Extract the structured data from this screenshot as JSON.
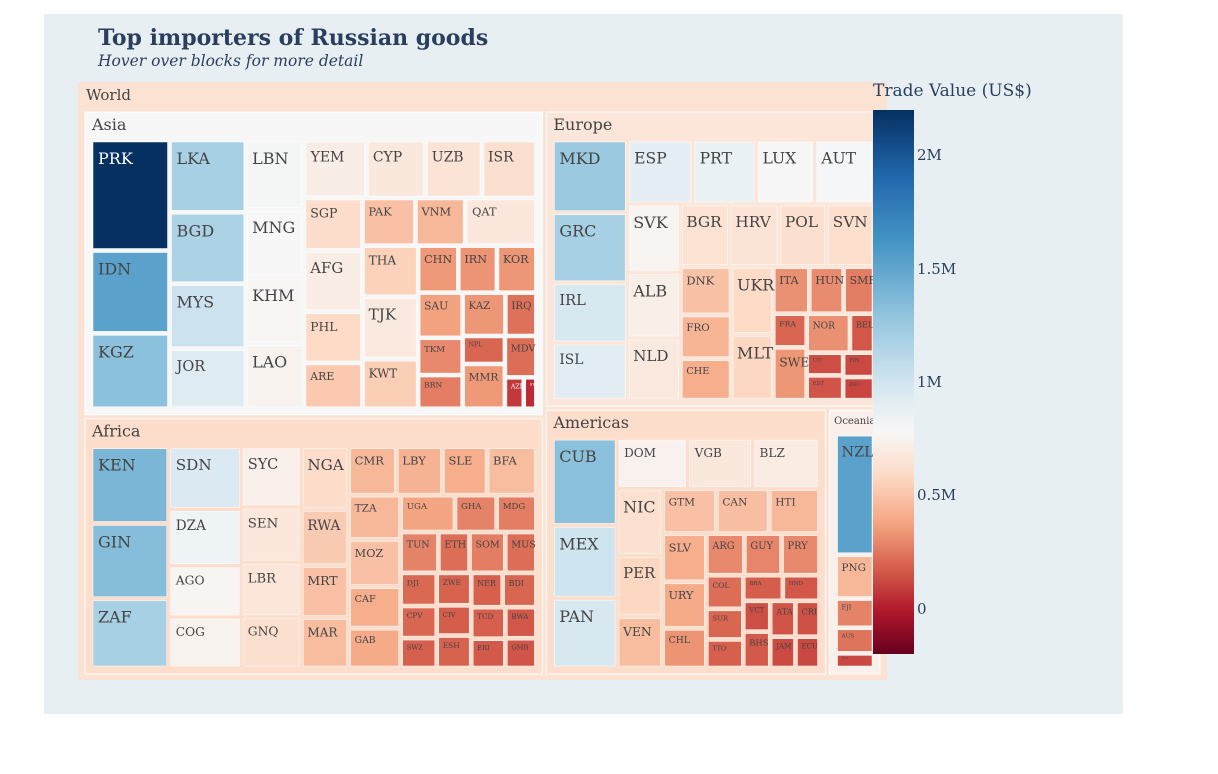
{
  "title": "Top importers of Russian goods",
  "subtitle": "Hover over blocks for more detail",
  "colorbar": {
    "title": "Trade Value (US$)",
    "ticks": [
      {
        "label": "2M",
        "value": 2000000
      },
      {
        "label": "1.5M",
        "value": 1500000
      },
      {
        "label": "1M",
        "value": 1000000
      },
      {
        "label": "0.5M",
        "value": 500000
      },
      {
        "label": "0",
        "value": 0
      }
    ],
    "colorscale": [
      "#053061",
      "#2166ac",
      "#4393c3",
      "#92c5de",
      "#d1e5f0",
      "#f7f7f7",
      "#fddbc7",
      "#f4a582",
      "#d6604d",
      "#b2182b",
      "#67001f"
    ]
  },
  "chart_data": {
    "type": "treemap",
    "root": "World",
    "color_range": [
      -200000,
      2200000
    ],
    "regions": [
      {
        "name": "Asia",
        "value": 0.97,
        "color_value": 1000000,
        "countries": [
          {
            "label": "PRK",
            "value": 2200000
          },
          {
            "label": "IDN",
            "value": 1650000
          },
          {
            "label": "KGZ",
            "value": 1500000
          },
          {
            "label": "LKA",
            "value": 1400000
          },
          {
            "label": "BGD",
            "value": 1380000
          },
          {
            "label": "MYS",
            "value": 1260000
          },
          {
            "label": "JOR",
            "value": 1160000
          },
          {
            "label": "LBN",
            "value": 1020000
          },
          {
            "label": "MNG",
            "value": 1000000
          },
          {
            "label": "KHM",
            "value": 980000
          },
          {
            "label": "LAO",
            "value": 960000
          },
          {
            "label": "YEM",
            "value": 920000
          },
          {
            "label": "CYP",
            "value": 870000
          },
          {
            "label": "UZB",
            "value": 830000
          },
          {
            "label": "ISR",
            "value": 800000
          },
          {
            "label": "SGP",
            "value": 780000
          },
          {
            "label": "AFG",
            "value": 910000
          },
          {
            "label": "PHL",
            "value": 760000
          },
          {
            "label": "ARE",
            "value": 680000
          },
          {
            "label": "PAK",
            "value": 640000
          },
          {
            "label": "VNM",
            "value": 600000
          },
          {
            "label": "QAT",
            "value": 860000
          },
          {
            "label": "THA",
            "value": 720000
          },
          {
            "label": "TJK",
            "value": 880000
          },
          {
            "label": "KWT",
            "value": 700000
          },
          {
            "label": "CHN",
            "value": 480000
          },
          {
            "label": "IRN",
            "value": 460000
          },
          {
            "label": "KOR",
            "value": 470000
          },
          {
            "label": "SAU",
            "value": 510000
          },
          {
            "label": "TKM",
            "value": 420000
          },
          {
            "label": "BRN",
            "value": 380000
          },
          {
            "label": "KAZ",
            "value": 470000
          },
          {
            "label": "IRQ",
            "value": 340000
          },
          {
            "label": "NPL",
            "value": 300000
          },
          {
            "label": "MMR",
            "value": 480000
          },
          {
            "label": "MDV",
            "value": 330000
          },
          {
            "label": "AZE",
            "value": 150000
          },
          {
            "label": "SYR",
            "value": 100000
          }
        ]
      },
      {
        "name": "Africa",
        "value": 0.82,
        "color_value": 780000,
        "countries": [
          {
            "label": "KEN",
            "value": 1550000
          },
          {
            "label": "GIN",
            "value": 1520000
          },
          {
            "label": "ZAF",
            "value": 1400000
          },
          {
            "label": "SDN",
            "value": 1180000
          },
          {
            "label": "DZA",
            "value": 1060000
          },
          {
            "label": "AGO",
            "value": 970000
          },
          {
            "label": "COG",
            "value": 960000
          },
          {
            "label": "SYC",
            "value": 940000
          },
          {
            "label": "SEN",
            "value": 860000
          },
          {
            "label": "LBR",
            "value": 850000
          },
          {
            "label": "GNQ",
            "value": 800000
          },
          {
            "label": "NGA",
            "value": 770000
          },
          {
            "label": "RWA",
            "value": 690000
          },
          {
            "label": "MRT",
            "value": 640000
          },
          {
            "label": "MAR",
            "value": 620000
          },
          {
            "label": "CMR",
            "value": 600000
          },
          {
            "label": "LBY",
            "value": 580000
          },
          {
            "label": "SLE",
            "value": 560000
          },
          {
            "label": "BFA",
            "value": 620000
          },
          {
            "label": "TZA",
            "value": 600000
          },
          {
            "label": "MOZ",
            "value": 640000
          },
          {
            "label": "CAF",
            "value": 560000
          },
          {
            "label": "GAB",
            "value": 540000
          },
          {
            "label": "UGA",
            "value": 520000
          },
          {
            "label": "GHA",
            "value": 400000
          },
          {
            "label": "MDG",
            "value": 380000
          },
          {
            "label": "TUN",
            "value": 400000
          },
          {
            "label": "ETH",
            "value": 330000
          },
          {
            "label": "SOM",
            "value": 380000
          },
          {
            "label": "MUS",
            "value": 330000
          },
          {
            "label": "DJI",
            "value": 310000
          },
          {
            "label": "CPV",
            "value": 300000
          },
          {
            "label": "SWZ",
            "value": 280000
          },
          {
            "label": "ZWE",
            "value": 290000
          },
          {
            "label": "CIV",
            "value": 270000
          },
          {
            "label": "ESH",
            "value": 290000
          },
          {
            "label": "NER",
            "value": 280000
          },
          {
            "label": "BDI",
            "value": 300000
          },
          {
            "label": "TCD",
            "value": 280000
          },
          {
            "label": "ERI",
            "value": 260000
          },
          {
            "label": "BWA",
            "value": 250000
          },
          {
            "label": "GMB",
            "value": 240000
          }
        ]
      },
      {
        "name": "Europe",
        "value": 0.69,
        "color_value": 850000,
        "countries": [
          {
            "label": "MKD",
            "value": 1450000
          },
          {
            "label": "GRC",
            "value": 1400000
          },
          {
            "label": "IRL",
            "value": 1200000
          },
          {
            "label": "ISL",
            "value": 1140000
          },
          {
            "label": "ESP",
            "value": 1120000
          },
          {
            "label": "PRT",
            "value": 1080000
          },
          {
            "label": "LUX",
            "value": 1000000
          },
          {
            "label": "AUT",
            "value": 1010000
          },
          {
            "label": "SVK",
            "value": 970000
          },
          {
            "label": "ALB",
            "value": 930000
          },
          {
            "label": "NLD",
            "value": 880000
          },
          {
            "label": "BGR",
            "value": 820000
          },
          {
            "label": "HRV",
            "value": 830000
          },
          {
            "label": "POL",
            "value": 800000
          },
          {
            "label": "SVN",
            "value": 790000
          },
          {
            "label": "DNK",
            "value": 650000
          },
          {
            "label": "FRO",
            "value": 590000
          },
          {
            "label": "CHE",
            "value": 560000
          },
          {
            "label": "UKR",
            "value": 760000
          },
          {
            "label": "MLT",
            "value": 740000
          },
          {
            "label": "ITA",
            "value": 450000
          },
          {
            "label": "HUN",
            "value": 430000
          },
          {
            "label": "SMR",
            "value": 380000
          },
          {
            "label": "FRA",
            "value": 300000
          },
          {
            "label": "SWE",
            "value": 470000
          },
          {
            "label": "NOR",
            "value": 450000
          },
          {
            "label": "BEL",
            "value": 250000
          },
          {
            "label": "LTU",
            "value": 220000
          },
          {
            "label": "EST",
            "value": 240000
          },
          {
            "label": "FIN",
            "value": 200000
          },
          {
            "label": "DEU",
            "value": 190000
          }
        ]
      },
      {
        "name": "Americas",
        "value": 0.52,
        "color_value": 780000,
        "countries": [
          {
            "label": "CUB",
            "value": 1500000
          },
          {
            "label": "MEX",
            "value": 1250000
          },
          {
            "label": "PAN",
            "value": 1200000
          },
          {
            "label": "DOM",
            "value": 950000
          },
          {
            "label": "VGB",
            "value": 870000
          },
          {
            "label": "BLZ",
            "value": 900000
          },
          {
            "label": "NIC",
            "value": 810000
          },
          {
            "label": "PER",
            "value": 740000
          },
          {
            "label": "VEN",
            "value": 620000
          },
          {
            "label": "GTM",
            "value": 640000
          },
          {
            "label": "CAN",
            "value": 630000
          },
          {
            "label": "HTI",
            "value": 600000
          },
          {
            "label": "SLV",
            "value": 560000
          },
          {
            "label": "URY",
            "value": 540000
          },
          {
            "label": "CHL",
            "value": 460000
          },
          {
            "label": "ARG",
            "value": 420000
          },
          {
            "label": "GUY",
            "value": 410000
          },
          {
            "label": "PRY",
            "value": 420000
          },
          {
            "label": "COL",
            "value": 330000
          },
          {
            "label": "SUR",
            "value": 300000
          },
          {
            "label": "TTO",
            "value": 280000
          },
          {
            "label": "BRA",
            "value": 270000
          },
          {
            "label": "HND",
            "value": 250000
          },
          {
            "label": "VCT",
            "value": 220000
          },
          {
            "label": "BHS",
            "value": 260000
          },
          {
            "label": "ATA",
            "value": 240000
          },
          {
            "label": "CRI",
            "value": 230000
          },
          {
            "label": "JAM",
            "value": 210000
          },
          {
            "label": "ECU",
            "value": 200000
          }
        ]
      },
      {
        "name": "Oceania",
        "value": 0.1,
        "color_value": 940000,
        "countries": [
          {
            "label": "NZL",
            "value": 1650000
          },
          {
            "label": "PNG",
            "value": 600000
          },
          {
            "label": "FJI",
            "value": 400000
          },
          {
            "label": "AUS",
            "value": 350000
          },
          {
            "label": "TON",
            "value": 200000
          }
        ]
      }
    ]
  }
}
